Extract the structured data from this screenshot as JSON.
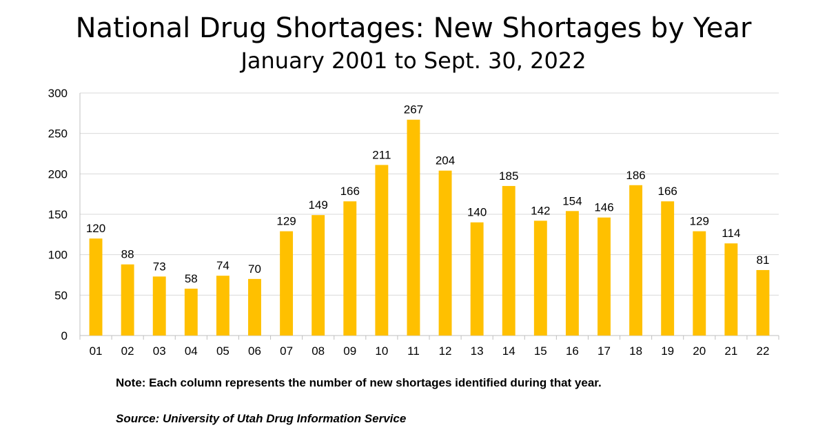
{
  "header": {
    "title": "National Drug Shortages: New Shortages by Year",
    "subtitle": "January 2001 to Sept. 30, 2022"
  },
  "footer": {
    "note": "Note: Each column represents the number of new shortages identified during that year.",
    "source": "Source: University of Utah Drug Information Service"
  },
  "colors": {
    "bar": "#FFC000",
    "grid": "#D9D9D9",
    "axis": "#BFBFBF"
  },
  "chart_data": {
    "type": "bar",
    "title": "National Drug Shortages: New Shortages by Year",
    "subtitle": "January 2001 to Sept. 30, 2022",
    "categories": [
      "01",
      "02",
      "03",
      "04",
      "05",
      "06",
      "07",
      "08",
      "09",
      "10",
      "11",
      "12",
      "13",
      "14",
      "15",
      "16",
      "17",
      "18",
      "19",
      "20",
      "21",
      "22"
    ],
    "values": [
      120,
      88,
      73,
      58,
      74,
      70,
      129,
      149,
      166,
      211,
      267,
      204,
      140,
      185,
      142,
      154,
      146,
      186,
      166,
      129,
      114,
      81
    ],
    "yticks": [
      "0",
      "50",
      "100",
      "150",
      "200",
      "250",
      "300"
    ],
    "ylim": [
      0,
      300
    ],
    "xlabel": "",
    "ylabel": "",
    "grid": true,
    "data_labels": true,
    "legend": "none"
  }
}
